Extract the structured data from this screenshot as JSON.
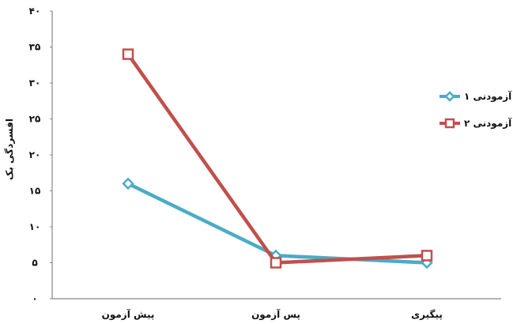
{
  "chart_data": {
    "type": "line",
    "title": "",
    "xlabel": "",
    "ylabel": "افسردگی بک",
    "categories": [
      "پیش آزمون",
      "پس آزمون",
      "پیگیری"
    ],
    "series": [
      {
        "name": "آزمودنی ۱",
        "values": [
          16,
          6,
          5
        ],
        "color": "#4BACC6",
        "marker": "diamond"
      },
      {
        "name": "آزمودنی ۲",
        "values": [
          34,
          5,
          6
        ],
        "color": "#C0504D",
        "marker": "square"
      }
    ],
    "yticks": [
      "۰",
      "۵",
      "۱۰",
      "۱۵",
      "۲۰",
      "۲۵",
      "۳۰",
      "۳۵",
      "۴۰"
    ],
    "ylim": [
      0,
      40
    ],
    "grid": false,
    "legend": "right"
  }
}
